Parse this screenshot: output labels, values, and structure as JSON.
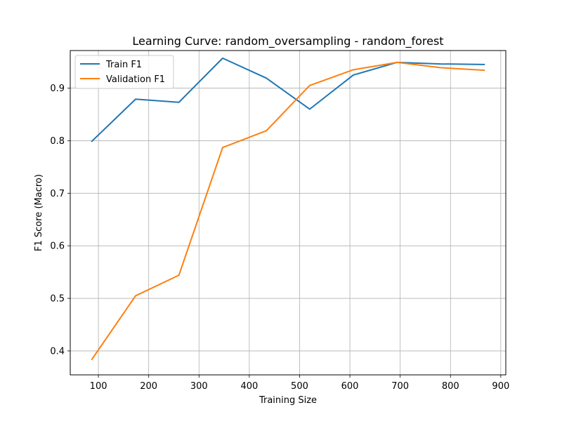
{
  "chart_data": {
    "type": "line",
    "title": "Learning Curve: random_oversampling - random_forest",
    "xlabel": "Training Size",
    "ylabel": "F1 Score (Macro)",
    "xlim": [
      44,
      910
    ],
    "ylim": [
      0.3545,
      0.9715
    ],
    "xticks": [
      100,
      200,
      300,
      400,
      500,
      600,
      700,
      800,
      900
    ],
    "yticks": [
      0.4,
      0.5,
      0.6,
      0.7,
      0.8,
      0.9
    ],
    "xtick_labels": [
      "100",
      "200",
      "300",
      "400",
      "500",
      "600",
      "700",
      "800",
      "900"
    ],
    "ytick_labels": [
      "0.4",
      "0.5",
      "0.6",
      "0.7",
      "0.8",
      "0.9"
    ],
    "grid": true,
    "legend_position": "upper-left",
    "x": [
      87,
      174,
      260,
      347,
      434,
      520,
      607,
      694,
      780,
      867
    ],
    "series": [
      {
        "name": "Train F1",
        "color": "#1f77b4",
        "values": [
          0.799,
          0.879,
          0.873,
          0.957,
          0.919,
          0.86,
          0.925,
          0.949,
          0.946,
          0.945
        ]
      },
      {
        "name": "Validation F1",
        "color": "#ff7f0e",
        "values": [
          0.384,
          0.505,
          0.544,
          0.787,
          0.819,
          0.905,
          0.935,
          0.949,
          0.939,
          0.934
        ]
      }
    ]
  }
}
